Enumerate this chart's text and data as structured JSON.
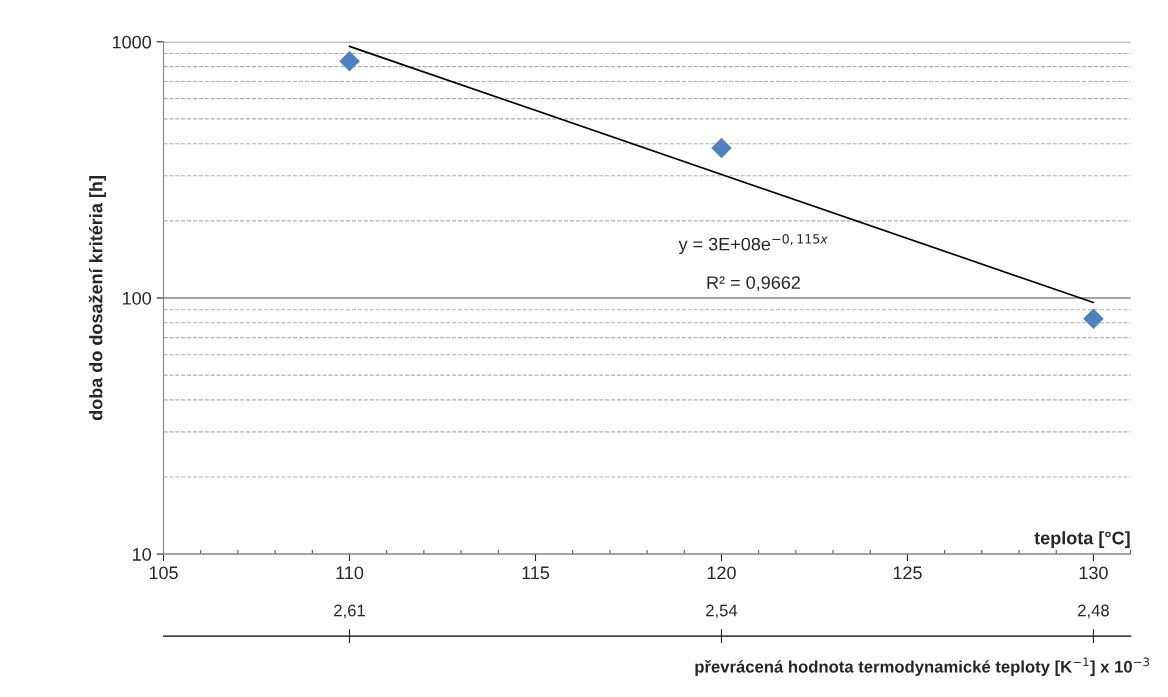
{
  "chart_data": {
    "type": "scatter",
    "xlabel": "teplota [°C]",
    "ylabel": "doba do dosažení kritéria [h]",
    "x2label": "převrácená hodnota termodynamické teploty [K$^{−1}$] x 10$^{−3}$",
    "series": [
      {
        "color": "#4f81bd",
        "marker": "diamond",
        "x": [
          110,
          120,
          130
        ],
        "values": [
          840,
          385,
          83
        ]
      },
      {
        "type": "line",
        "color": "#000000",
        "marker": "none",
        "line_style": "solid",
        "x": [
          110,
          130
        ],
        "values": [
          960,
          96
        ]
      }
    ],
    "annotations": [
      "y = 3E+08e$^{−0,115x}$",
      "R² = 0,9662"
    ],
    "log": "y",
    "xlim": [
      105,
      131
    ],
    "xticks": [
      105,
      110,
      115,
      120,
      125,
      130
    ],
    "ylim": [
      10,
      1000
    ],
    "yticks": [
      10,
      100,
      1000
    ],
    "x2lim": [
      2.6425,
      2.4735
    ],
    "x2ticks": [
      {
        "value": 2.61,
        "label": "2,61"
      },
      {
        "value": 2.545,
        "label": "2,54"
      },
      {
        "value": 2.48,
        "label": "2,48"
      }
    ],
    "grid": "y"
  }
}
